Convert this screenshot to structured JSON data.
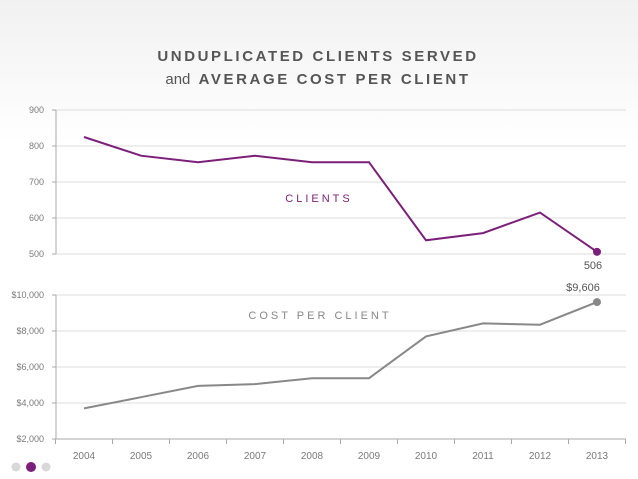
{
  "title": {
    "line1": "UNDUPLICATED CLIENTS SERVED",
    "line2_prefix": "and",
    "line2_bold": "AVERAGE COST PER CLIENT"
  },
  "colors": {
    "clients": "#7b1f7a",
    "cost": "#888888",
    "title": "#555555",
    "axis_text": "#7a7a7a",
    "grid": "#dddddd",
    "nav_active": "#7b1f7a",
    "nav_inactive": "#d8d8d8"
  },
  "chart_data": [
    {
      "type": "line",
      "annotation": "CLIENTS",
      "x": [
        "2004",
        "2005",
        "2006",
        "2007",
        "2008",
        "2009",
        "2010",
        "2011",
        "2012",
        "2013"
      ],
      "series": [
        {
          "values": [
            825,
            773,
            755,
            773,
            755,
            755,
            538,
            558,
            615,
            506
          ]
        }
      ],
      "ylim": [
        500,
        900
      ],
      "yticks": [
        500,
        600,
        700,
        800,
        900
      ],
      "ytick_labels": [
        "500",
        "600",
        "700",
        "800",
        "900"
      ],
      "end_label": "506",
      "grid": true
    },
    {
      "type": "line",
      "annotation": "COST PER CLIENT",
      "x": [
        "2004",
        "2005",
        "2006",
        "2007",
        "2008",
        "2009",
        "2010",
        "2011",
        "2012",
        "2013"
      ],
      "series": [
        {
          "values": [
            3700,
            4320,
            4950,
            5050,
            5380,
            5380,
            7700,
            8420,
            8350,
            9606
          ]
        }
      ],
      "ylim": [
        2000,
        10000
      ],
      "yticks": [
        2000,
        4000,
        6000,
        8000,
        10000
      ],
      "ytick_labels": [
        "$2,000",
        "$4,000",
        "$6,000",
        "$8,000",
        "$10,000"
      ],
      "end_label": "$9,606",
      "grid": true
    }
  ],
  "nav_dots": {
    "count": 3,
    "active": 1
  }
}
